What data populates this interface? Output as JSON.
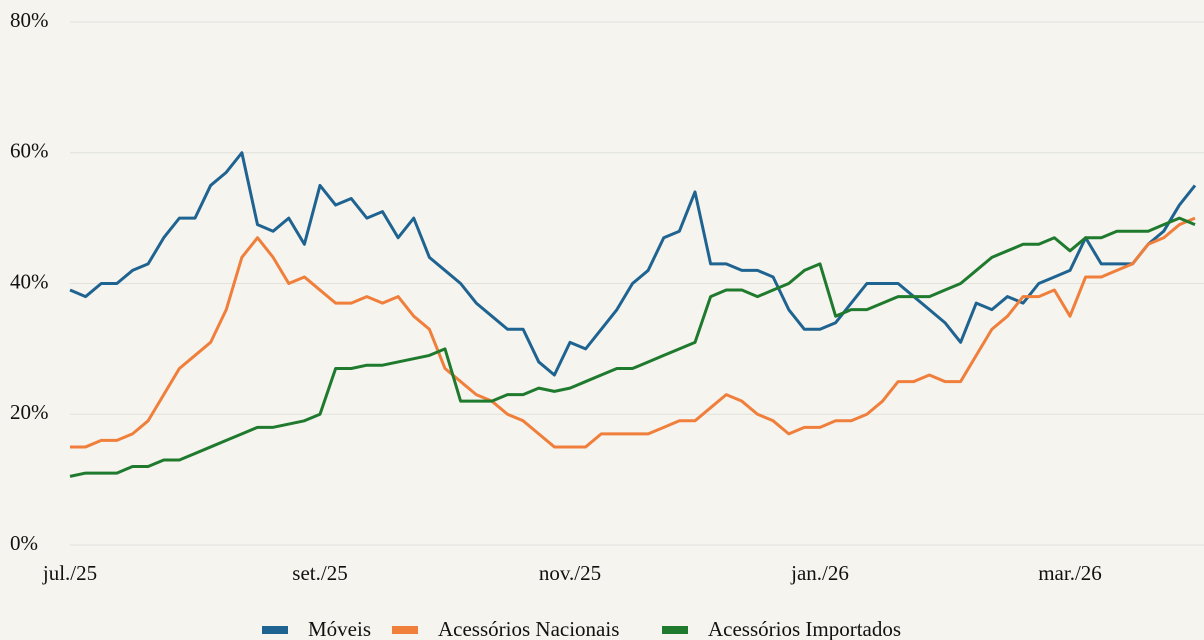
{
  "chart_data": {
    "type": "line",
    "categories": [
      "jul./25",
      null,
      null,
      null,
      null,
      null,
      null,
      null,
      null,
      null,
      null,
      null,
      null,
      null,
      null,
      null,
      "set./25",
      null,
      null,
      null,
      null,
      null,
      null,
      null,
      null,
      null,
      null,
      null,
      null,
      null,
      null,
      null,
      "nov./25",
      null,
      null,
      null,
      null,
      null,
      null,
      null,
      null,
      null,
      null,
      null,
      null,
      null,
      null,
      null,
      "jan./26",
      null,
      null,
      null,
      null,
      null,
      null,
      null,
      null,
      null,
      null,
      null,
      null,
      null,
      null,
      null,
      "mar./26",
      null,
      null,
      null,
      null,
      null,
      null,
      null,
      null
    ],
    "series": [
      {
        "name": "Móveis",
        "color": "#1f6391",
        "values": [
          39,
          38,
          40,
          40,
          42,
          43,
          47,
          50,
          50,
          55,
          57,
          60,
          49,
          48,
          50,
          46,
          55,
          52,
          53,
          50,
          51,
          47,
          50,
          44,
          42,
          40,
          37,
          35,
          33,
          33,
          28,
          26,
          31,
          30,
          33,
          36,
          40,
          42,
          47,
          48,
          54,
          43,
          43,
          42,
          42,
          41,
          36,
          33,
          33,
          34,
          37,
          40,
          40,
          40,
          38,
          36,
          34,
          31,
          37,
          36,
          38,
          37,
          40,
          41,
          42,
          47,
          43,
          43,
          43,
          46,
          48,
          52,
          55
        ]
      },
      {
        "name": "Acessórios Nacionais",
        "color": "#f07f3c",
        "values": [
          15,
          15,
          16,
          16,
          17,
          19,
          23,
          27,
          29,
          31,
          36,
          44,
          47,
          44,
          40,
          41,
          39,
          37,
          37,
          38,
          37,
          38,
          35,
          33,
          27,
          25,
          23,
          22,
          20,
          19,
          17,
          15,
          15,
          15,
          17,
          17,
          17,
          17,
          18,
          19,
          19,
          21,
          23,
          22,
          20,
          19,
          17,
          18,
          18,
          19,
          19,
          20,
          22,
          25,
          25,
          26,
          25,
          25,
          29,
          33,
          35,
          38,
          38,
          39,
          35,
          41,
          41,
          42,
          43,
          46,
          47,
          49,
          50
        ]
      },
      {
        "name": "Acessórios Importados",
        "color": "#1f7a2e",
        "values": [
          10.5,
          11,
          11,
          11,
          12,
          12,
          13,
          13,
          14,
          15,
          16,
          17,
          18,
          18,
          18.5,
          19,
          20,
          27,
          27,
          27.5,
          27.5,
          28,
          28.5,
          29,
          30,
          22,
          22,
          22,
          23,
          23,
          24,
          23.5,
          24,
          25,
          26,
          27,
          27,
          28,
          29,
          30,
          31,
          38,
          39,
          39,
          38,
          39,
          40,
          42,
          43,
          35,
          36,
          36,
          37,
          38,
          38,
          38,
          39,
          40,
          42,
          44,
          45,
          46,
          46,
          47,
          45,
          47,
          47,
          48,
          48,
          48,
          49,
          50,
          49
        ]
      }
    ],
    "ylim": [
      0,
      80
    ],
    "yticks": [
      {
        "value": 0,
        "label": "0%"
      },
      {
        "value": 20,
        "label": "20%"
      },
      {
        "value": 40,
        "label": "40%"
      },
      {
        "value": 60,
        "label": "60%"
      },
      {
        "value": 80,
        "label": "80%"
      }
    ],
    "grid": true,
    "legend": "bottom"
  }
}
